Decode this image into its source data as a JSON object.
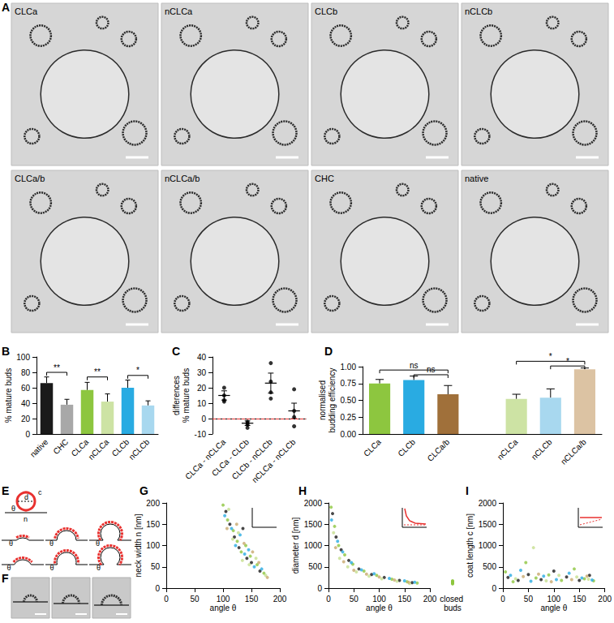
{
  "chart_data": [
    {
      "panel": "B",
      "type": "bar",
      "ylabel": "% mature buds",
      "categories": [
        "native",
        "CHC",
        "CLCa",
        "nCLCa",
        "CLCb",
        "nCLCb"
      ],
      "values": [
        66,
        38,
        57,
        42,
        60,
        37
      ],
      "errors": [
        8,
        7,
        10,
        10,
        10,
        6
      ],
      "colors": [
        "#1a1a1a",
        "#a8a8a8",
        "#8dc63f",
        "#cde3a4",
        "#29abe2",
        "#a8d8ef"
      ],
      "ylim": [
        0,
        100
      ],
      "yticks": [
        0,
        20,
        40,
        60,
        80,
        100
      ],
      "grid": false,
      "annotations": [
        {
          "text": "**",
          "from": 0,
          "to": 1,
          "y": 80
        },
        {
          "text": "**",
          "from": 2,
          "to": 3,
          "y": 74
        },
        {
          "text": "*",
          "from": 4,
          "to": 5,
          "y": 76
        }
      ]
    },
    {
      "panel": "C",
      "type": "scatter",
      "ylabel": "differences\n% mature buds",
      "categories": [
        "CLCa - nCLCa",
        "CLCa - CLCb",
        "CLCb - nCLCb",
        "nCLCa - nCLCb"
      ],
      "points": [
        [
          20,
          15,
          12,
          11
        ],
        [
          -2,
          -3,
          -4,
          -6
        ],
        [
          36,
          24,
          17,
          13
        ],
        [
          19,
          5,
          1,
          -5
        ]
      ],
      "means": [
        15,
        -3,
        23,
        5
      ],
      "errors": [
        3,
        1.5,
        6.5,
        5
      ],
      "reference": {
        "value": 0,
        "color": "#e8312f",
        "line_style": "dashed"
      },
      "ylim": [
        -10,
        40
      ],
      "yticks": [
        -10,
        0,
        10,
        20,
        30,
        40
      ],
      "grid": false
    },
    {
      "panel": "D",
      "type": "bar",
      "ylabel": "normalised\nbudding efficiency",
      "categories": [
        "CLCa",
        "CLCb",
        "CLCa/b",
        null,
        "nCLCa",
        "nCLCb",
        "nCLCa/b"
      ],
      "values": [
        0.75,
        0.8,
        0.59,
        null,
        0.52,
        0.54,
        0.96
      ],
      "errors": [
        0.06,
        0.06,
        0.13,
        null,
        0.07,
        0.13,
        0.02
      ],
      "colors": [
        "#8dc63f",
        "#29abe2",
        "#a0703a",
        null,
        "#cde3a4",
        "#a8d8ef",
        "#dcc3a3"
      ],
      "ylim": [
        0,
        1
      ],
      "yticks": [
        {
          "value": 0,
          "label": "0.00"
        },
        {
          "value": 0.25,
          "label": "0.25"
        },
        {
          "value": 0.5,
          "label": "0.50"
        },
        {
          "value": 0.75,
          "label": "0.75"
        },
        {
          "value": 1,
          "label": "1.00"
        }
      ],
      "grid": false,
      "annotations": [
        {
          "text": "ns",
          "from": 0,
          "to": 2,
          "y": 0.95
        },
        {
          "text": "ns",
          "from": 1,
          "to": 2,
          "y": 0.88
        },
        {
          "text": "*",
          "from": 4,
          "to": 6,
          "y": 1.08
        },
        {
          "text": "*",
          "from": 5,
          "to": 6,
          "y": 1.01
        }
      ]
    },
    {
      "panel": "G",
      "type": "scatter",
      "xlabel": "angle θ",
      "ylabel": "neck width n [nm]",
      "xlim": [
        0,
        200
      ],
      "xticks": [
        0,
        50,
        100,
        150,
        200
      ],
      "ylim": [
        0,
        200
      ],
      "yticks": [
        0,
        50,
        100,
        150,
        200
      ],
      "grid": false,
      "series": [
        {
          "color": "#1a1a1a",
          "values": [
            [
              105,
              180
            ],
            [
              112,
              150
            ],
            [
              120,
              120
            ],
            [
              128,
              95
            ],
            [
              135,
              140
            ],
            [
              142,
              70
            ],
            [
              150,
              60
            ],
            [
              165,
              40
            ]
          ]
        },
        {
          "color": "#8dc63f",
          "values": [
            [
              100,
              195
            ],
            [
              108,
              160
            ],
            [
              118,
              135
            ],
            [
              125,
              110
            ],
            [
              132,
              85
            ],
            [
              140,
              100
            ],
            [
              148,
              75
            ],
            [
              160,
              55
            ],
            [
              172,
              35
            ]
          ]
        },
        {
          "color": "#29abe2",
          "values": [
            [
              103,
              170
            ],
            [
              115,
              140
            ],
            [
              122,
              100
            ],
            [
              130,
              125
            ],
            [
              138,
              80
            ],
            [
              145,
              90
            ],
            [
              155,
              50
            ],
            [
              168,
              45
            ]
          ]
        },
        {
          "color": "#c5df8f",
          "values": [
            [
              110,
              185
            ],
            [
              117,
              115
            ],
            [
              127,
              130
            ],
            [
              134,
              65
            ],
            [
              146,
              55
            ],
            [
              158,
              70
            ],
            [
              175,
              30
            ]
          ]
        },
        {
          "color": "#c8a96e",
          "values": [
            [
              107,
              140
            ],
            [
              124,
              150
            ],
            [
              137,
              105
            ],
            [
              152,
              85
            ],
            [
              163,
              60
            ],
            [
              178,
              25
            ]
          ]
        }
      ]
    },
    {
      "panel": "H",
      "type": "scatter",
      "xlabel": "angle θ",
      "ylabel": "diameter d [nm]",
      "xlim": [
        0,
        200
      ],
      "xticks": [
        0,
        50,
        100,
        150,
        200
      ],
      "ylim": [
        0,
        2000
      ],
      "yticks": [
        0,
        500,
        1000,
        1500,
        2000
      ],
      "grid": false,
      "series": [
        {
          "color": "#1a1a1a",
          "values": [
            [
              8,
              1750
            ],
            [
              15,
              1200
            ],
            [
              25,
              900
            ],
            [
              40,
              650
            ],
            [
              60,
              450
            ],
            [
              85,
              320
            ],
            [
              110,
              250
            ],
            [
              140,
              180
            ],
            [
              165,
              130
            ]
          ]
        },
        {
          "color": "#8dc63f",
          "values": [
            [
              5,
              1900
            ],
            [
              12,
              1450
            ],
            [
              20,
              1000
            ],
            [
              32,
              780
            ],
            [
              48,
              560
            ],
            [
              70,
              400
            ],
            [
              95,
              300
            ],
            [
              125,
              210
            ],
            [
              155,
              150
            ],
            [
              175,
              120
            ]
          ]
        },
        {
          "color": "#29abe2",
          "values": [
            [
              6,
              1600
            ],
            [
              18,
              1100
            ],
            [
              28,
              850
            ],
            [
              45,
              600
            ],
            [
              65,
              430
            ],
            [
              90,
              340
            ],
            [
              120,
              230
            ],
            [
              150,
              170
            ],
            [
              170,
              140
            ]
          ]
        },
        {
          "color": "#c5df8f",
          "values": [
            [
              10,
              1300
            ],
            [
              22,
              700
            ],
            [
              38,
              500
            ],
            [
              55,
              380
            ],
            [
              80,
              280
            ],
            [
              105,
              220
            ],
            [
              135,
              160
            ],
            [
              160,
              110
            ]
          ]
        },
        {
          "color": "#c8a96e",
          "values": [
            [
              14,
              950
            ],
            [
              30,
              620
            ],
            [
              50,
              420
            ],
            [
              75,
              330
            ],
            [
              100,
              260
            ],
            [
              130,
              190
            ],
            [
              158,
              140
            ]
          ]
        }
      ],
      "closed_buds": {
        "label": "closed buds",
        "color": "#8dc63f",
        "values": [
          120,
          140,
          160,
          110,
          150,
          130,
          170,
          100,
          145,
          125
        ]
      }
    },
    {
      "panel": "I",
      "type": "scatter",
      "xlabel": "angle θ",
      "ylabel": "coat length c [nm]",
      "xlim": [
        0,
        200
      ],
      "xticks": [
        0,
        50,
        100,
        150,
        200
      ],
      "ylim": [
        0,
        2000
      ],
      "yticks": [
        0,
        500,
        1000,
        1500,
        2000
      ],
      "grid": false,
      "series": [
        {
          "color": "#1a1a1a",
          "values": [
            [
              10,
              250
            ],
            [
              30,
              180
            ],
            [
              50,
              320
            ],
            [
              75,
              200
            ],
            [
              100,
              400
            ],
            [
              125,
              260
            ],
            [
              150,
              180
            ],
            [
              170,
              300
            ]
          ]
        },
        {
          "color": "#8dc63f",
          "values": [
            [
              5,
              380
            ],
            [
              20,
              150
            ],
            [
              45,
              600
            ],
            [
              65,
              240
            ],
            [
              90,
              310
            ],
            [
              115,
              180
            ],
            [
              140,
              450
            ],
            [
              160,
              220
            ],
            [
              178,
              170
            ]
          ]
        },
        {
          "color": "#29abe2",
          "values": [
            [
              15,
              300
            ],
            [
              35,
              420
            ],
            [
              55,
              160
            ],
            [
              80,
              280
            ],
            [
              105,
              200
            ],
            [
              130,
              350
            ],
            [
              155,
              240
            ],
            [
              175,
              190
            ]
          ]
        },
        {
          "color": "#c5df8f",
          "values": [
            [
              25,
              220
            ],
            [
              60,
              950
            ],
            [
              85,
              170
            ],
            [
              110,
              300
            ],
            [
              145,
              260
            ],
            [
              168,
              210
            ]
          ]
        },
        {
          "color": "#c8a96e",
          "values": [
            [
              40,
              270
            ],
            [
              70,
              330
            ],
            [
              95,
              150
            ],
            [
              135,
              200
            ],
            [
              165,
              280
            ]
          ]
        }
      ]
    }
  ],
  "image_panels": {
    "A": {
      "labels": [
        "CLCa",
        "nCLCa",
        "CLCb",
        "nCLCb",
        "CLCa/b",
        "nCLCa/b",
        "CHC",
        "native"
      ]
    },
    "F": {
      "count": 3
    }
  },
  "schematic": {
    "panel": "E",
    "labels": {
      "coat": "c",
      "diameter": "d",
      "neck": "n",
      "angle": "θ"
    }
  }
}
